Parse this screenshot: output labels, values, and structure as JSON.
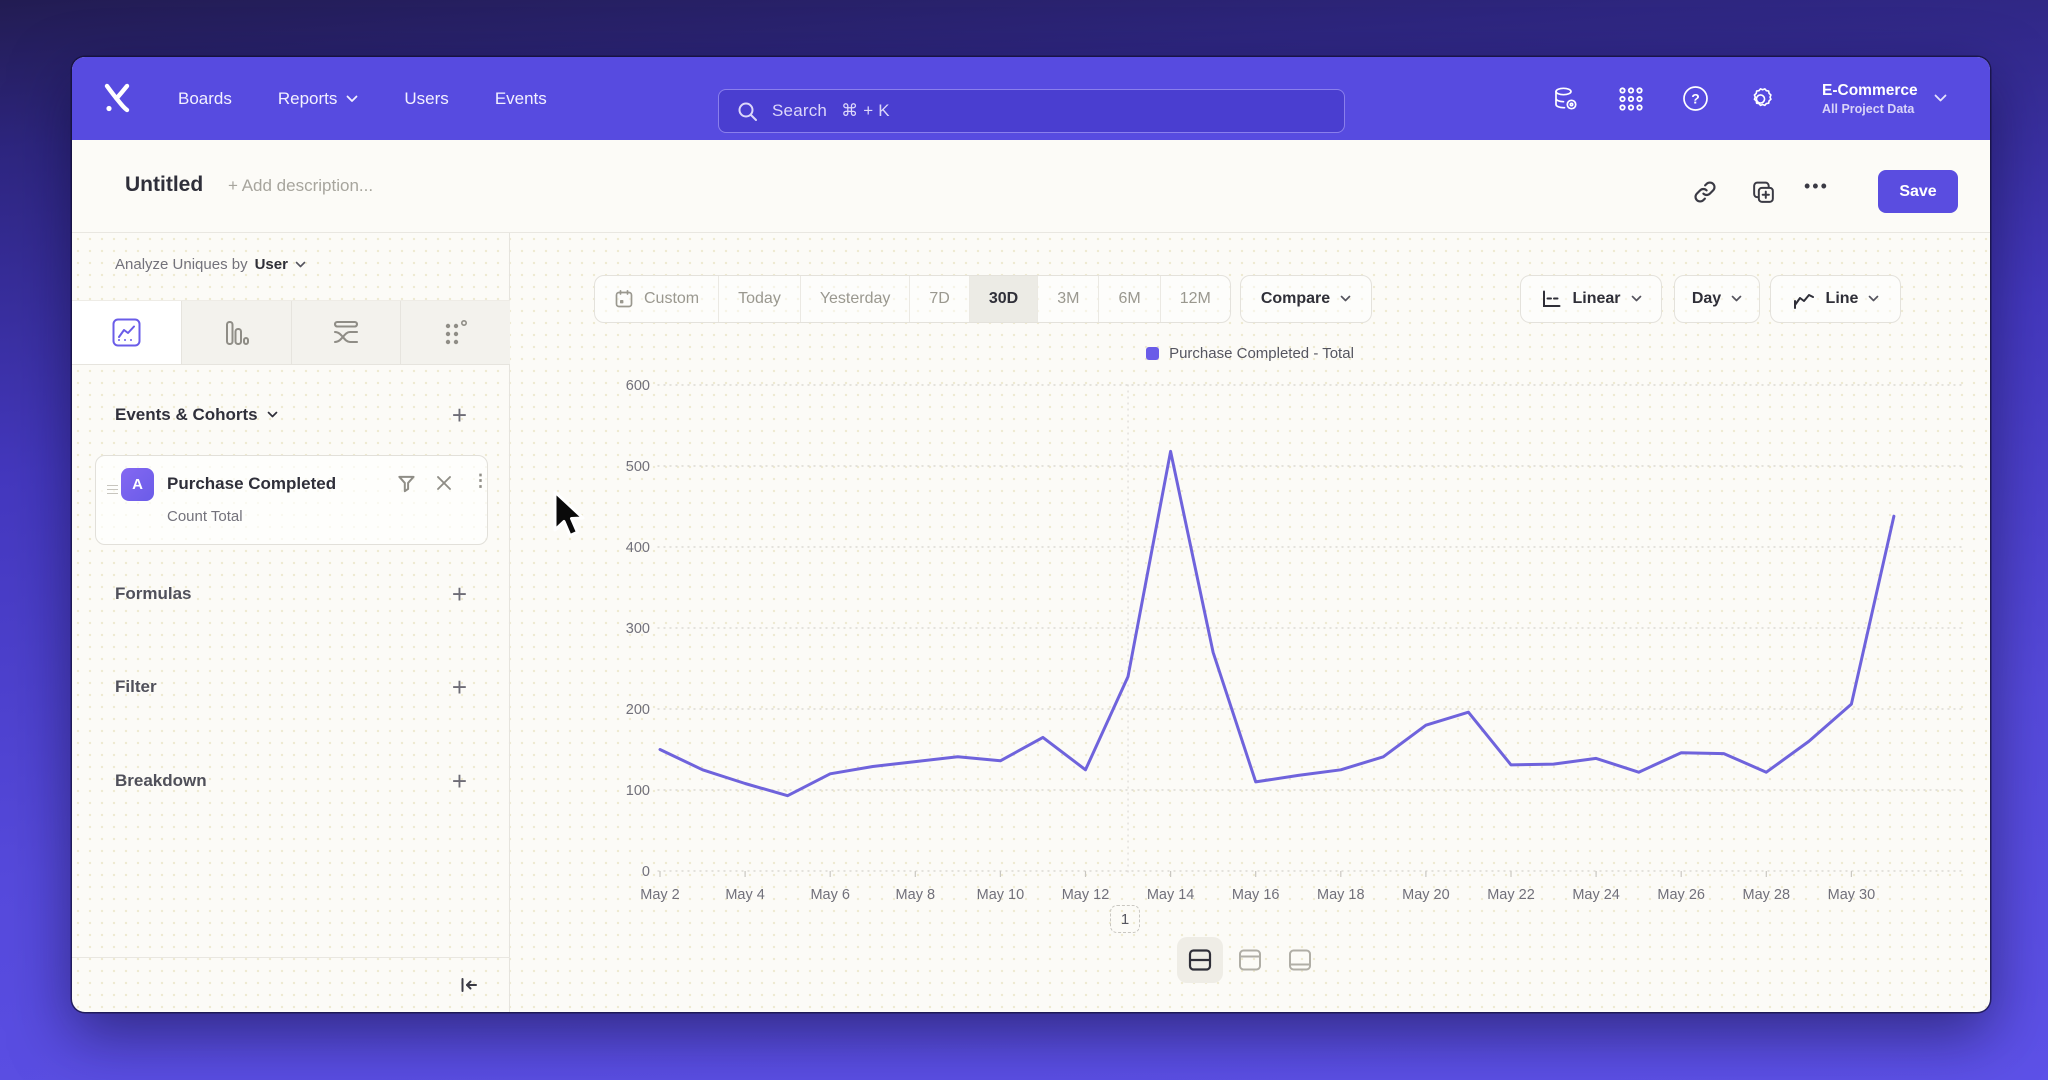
{
  "topnav": {
    "nav_items": [
      {
        "label": "Boards",
        "has_dropdown": false
      },
      {
        "label": "Reports",
        "has_dropdown": true
      },
      {
        "label": "Users",
        "has_dropdown": false
      },
      {
        "label": "Events",
        "has_dropdown": false
      }
    ],
    "search": {
      "placeholder": "Search",
      "shortcut": "⌘ + K"
    },
    "project": {
      "name": "E-Commerce",
      "scope": "All Project Data"
    }
  },
  "header": {
    "title": "Untitled",
    "description_placeholder": "+ Add description...",
    "more_label": "•••",
    "save_label": "Save"
  },
  "sidebar": {
    "analyze_prefix": "Analyze Uniques by",
    "analyze_value": "User",
    "events_section_title": "Events & Cohorts",
    "event_card": {
      "badge": "A",
      "name": "Purchase Completed",
      "metric": "Count Total",
      "kebab": "⋮"
    },
    "sections": [
      {
        "label": "Formulas"
      },
      {
        "label": "Filter"
      },
      {
        "label": "Breakdown"
      }
    ],
    "add_icon": "+"
  },
  "toolbar": {
    "ranges": [
      "Custom",
      "Today",
      "Yesterday",
      "7D",
      "30D",
      "3M",
      "6M",
      "12M"
    ],
    "active_range": "30D",
    "compare_label": "Compare",
    "scale_label": "Linear",
    "interval_label": "Day",
    "chart_type_label": "Line"
  },
  "pagination": {
    "page": "1"
  },
  "colors": {
    "nav_purple": "#574BE0",
    "accent_purple": "#6A5CE8",
    "line_color": "#6F63DC",
    "save_button": "#5A4DE0"
  },
  "chart_data": {
    "type": "line",
    "title": "",
    "legend": [
      {
        "label": "Purchase Completed - Total",
        "color": "#6A5CE8"
      }
    ],
    "x": [
      "May 2",
      "May 3",
      "May 4",
      "May 5",
      "May 6",
      "May 7",
      "May 8",
      "May 9",
      "May 10",
      "May 11",
      "May 12",
      "May 13",
      "May 14",
      "May 15",
      "May 16",
      "May 17",
      "May 18",
      "May 19",
      "May 20",
      "May 21",
      "May 22",
      "May 23",
      "May 24",
      "May 25",
      "May 26",
      "May 27",
      "May 28",
      "May 29",
      "May 30",
      "May 31"
    ],
    "series": [
      {
        "name": "Purchase Completed - Total",
        "color": "#6F63DC",
        "values": [
          150,
          125,
          108,
          93,
          120,
          129,
          135,
          141,
          136,
          165,
          125,
          240,
          518,
          270,
          110,
          118,
          125,
          141,
          180,
          196,
          131,
          132,
          139,
          122,
          146,
          145,
          122,
          160,
          206,
          438
        ]
      }
    ],
    "y_ticks": [
      0,
      100,
      200,
      300,
      400,
      500,
      600
    ],
    "ylim": [
      0,
      600
    ],
    "x_label_every": 2,
    "grid": "horizontal-dotted",
    "vline_index": 11,
    "legend_position": "top-center"
  }
}
